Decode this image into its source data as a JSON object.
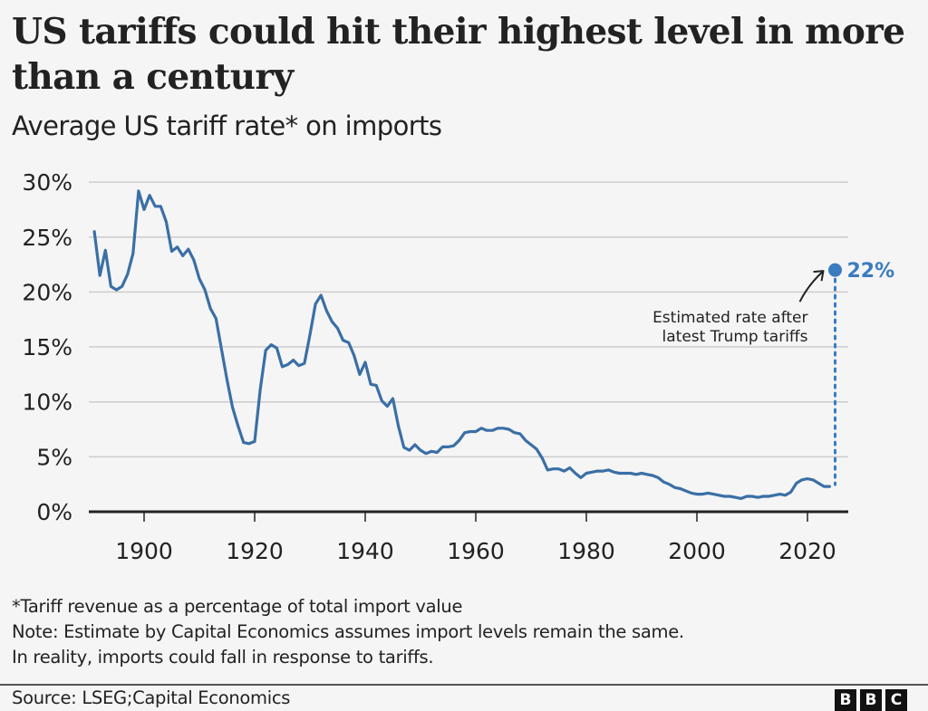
{
  "header": {
    "title": "US tariffs could hit their highest level in more than a century",
    "subtitle": "Average US tariff rate* on imports"
  },
  "footnotes": {
    "definition": "*Tariff revenue as a percentage of total import value",
    "note_line1": "Note: Estimate by Capital Economics assumes import levels remain the same.",
    "note_line2": "In reality, imports could fall in response to tariffs."
  },
  "footer": {
    "source": "Source: LSEG;Capital Economics",
    "logo_letters": [
      "B",
      "B",
      "C"
    ]
  },
  "colors": {
    "line": "#3a6fa5",
    "estimate": "#3a7cbf",
    "grid": "#cccccc",
    "axis": "#222222"
  },
  "chart_data": {
    "type": "line",
    "title": "US tariffs could hit their highest level in more than a century",
    "subtitle": "Average US tariff rate* on imports",
    "xlabel": "",
    "ylabel": "",
    "xlim": [
      1889,
      2028
    ],
    "ylim": [
      0,
      30
    ],
    "grid": true,
    "y_ticks": [
      0,
      5,
      10,
      15,
      20,
      25,
      30
    ],
    "y_tick_labels": [
      "0%",
      "5%",
      "10%",
      "15%",
      "20%",
      "25%",
      "30%"
    ],
    "x_ticks": [
      1900,
      1920,
      1940,
      1960,
      1980,
      2000,
      2020
    ],
    "x_tick_labels": [
      "1900",
      "1920",
      "1940",
      "1960",
      "1980",
      "2000",
      "2020"
    ],
    "series": [
      {
        "name": "Average US tariff rate",
        "x": [
          1891,
          1892,
          1893,
          1894,
          1895,
          1896,
          1897,
          1898,
          1899,
          1900,
          1901,
          1902,
          1903,
          1904,
          1905,
          1906,
          1907,
          1908,
          1909,
          1910,
          1911,
          1912,
          1913,
          1914,
          1915,
          1916,
          1917,
          1918,
          1919,
          1920,
          1921,
          1922,
          1923,
          1924,
          1925,
          1926,
          1927,
          1928,
          1929,
          1930,
          1931,
          1932,
          1933,
          1934,
          1935,
          1936,
          1937,
          1938,
          1939,
          1940,
          1941,
          1942,
          1943,
          1944,
          1945,
          1946,
          1947,
          1948,
          1949,
          1950,
          1951,
          1952,
          1953,
          1954,
          1955,
          1956,
          1957,
          1958,
          1959,
          1960,
          1961,
          1962,
          1963,
          1964,
          1965,
          1966,
          1967,
          1968,
          1969,
          1970,
          1971,
          1972,
          1973,
          1974,
          1975,
          1976,
          1977,
          1978,
          1979,
          1980,
          1981,
          1982,
          1983,
          1984,
          1985,
          1986,
          1987,
          1988,
          1989,
          1990,
          1991,
          1992,
          1993,
          1994,
          1995,
          1996,
          1997,
          1998,
          1999,
          2000,
          2001,
          2002,
          2003,
          2004,
          2005,
          2006,
          2007,
          2008,
          2009,
          2010,
          2011,
          2012,
          2013,
          2014,
          2015,
          2016,
          2017,
          2018,
          2019,
          2020,
          2021,
          2022,
          2023,
          2024
        ],
        "values": [
          25.5,
          21.5,
          23.8,
          20.5,
          20.2,
          20.5,
          21.6,
          23.5,
          29.2,
          27.5,
          28.8,
          27.8,
          27.8,
          26.4,
          23.7,
          24.1,
          23.3,
          23.9,
          22.9,
          21.2,
          20.2,
          18.5,
          17.6,
          14.8,
          12.0,
          9.5,
          7.8,
          6.3,
          6.2,
          6.4,
          11.1,
          14.7,
          15.2,
          14.9,
          13.2,
          13.4,
          13.8,
          13.3,
          13.5,
          16.1,
          18.9,
          19.7,
          18.3,
          17.3,
          16.7,
          15.6,
          15.4,
          14.2,
          12.5,
          13.6,
          11.6,
          11.5,
          10.1,
          9.6,
          10.3,
          7.8,
          5.85,
          5.6,
          6.1,
          5.6,
          5.3,
          5.5,
          5.4,
          5.9,
          5.9,
          6.0,
          6.5,
          7.2,
          7.3,
          7.3,
          7.6,
          7.4,
          7.4,
          7.6,
          7.6,
          7.5,
          7.2,
          7.1,
          6.5,
          6.1,
          5.7,
          4.9,
          3.8,
          3.9,
          3.9,
          3.7,
          4.0,
          3.5,
          3.1,
          3.5,
          3.6,
          3.7,
          3.7,
          3.8,
          3.6,
          3.5,
          3.5,
          3.5,
          3.4,
          3.5,
          3.4,
          3.3,
          3.1,
          2.7,
          2.5,
          2.2,
          2.1,
          1.9,
          1.7,
          1.6,
          1.6,
          1.7,
          1.6,
          1.5,
          1.4,
          1.4,
          1.3,
          1.2,
          1.4,
          1.4,
          1.3,
          1.4,
          1.4,
          1.5,
          1.6,
          1.5,
          1.8,
          2.6,
          2.9,
          3.0,
          2.9,
          2.6,
          2.3,
          2.3
        ]
      },
      {
        "name": "Estimate",
        "x": [
          2025
        ],
        "values": [
          22
        ],
        "label": "22%",
        "style": "dotted-connector"
      }
    ],
    "annotations": [
      {
        "text_line1": "Estimated rate after",
        "text_line2": "latest Trump tariffs",
        "points_to": "Estimate"
      }
    ],
    "legend": "none"
  }
}
